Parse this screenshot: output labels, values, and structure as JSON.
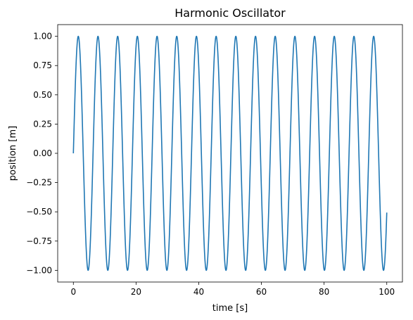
{
  "chart_data": {
    "type": "line",
    "title": "Harmonic Oscillator",
    "xlabel": "time [s]",
    "ylabel": "position [m]",
    "xlim": [
      -5,
      105
    ],
    "ylim": [
      -1.1,
      1.1
    ],
    "xticks": [
      0,
      20,
      40,
      60,
      80,
      100
    ],
    "xtick_labels": [
      "0",
      "20",
      "40",
      "60",
      "80",
      "100"
    ],
    "yticks": [
      -1.0,
      -0.75,
      -0.5,
      -0.25,
      0.0,
      0.25,
      0.5,
      0.75,
      1.0
    ],
    "ytick_labels": [
      "−1.00",
      "−0.75",
      "−0.50",
      "−0.25",
      "0.00",
      "0.25",
      "0.50",
      "0.75",
      "1.00"
    ],
    "grid": false,
    "series": [
      {
        "color": "#1f77b4",
        "function": "sin",
        "amplitude": 1.0,
        "angular_frequency": 1.0,
        "x_range": [
          0,
          100
        ]
      }
    ]
  }
}
